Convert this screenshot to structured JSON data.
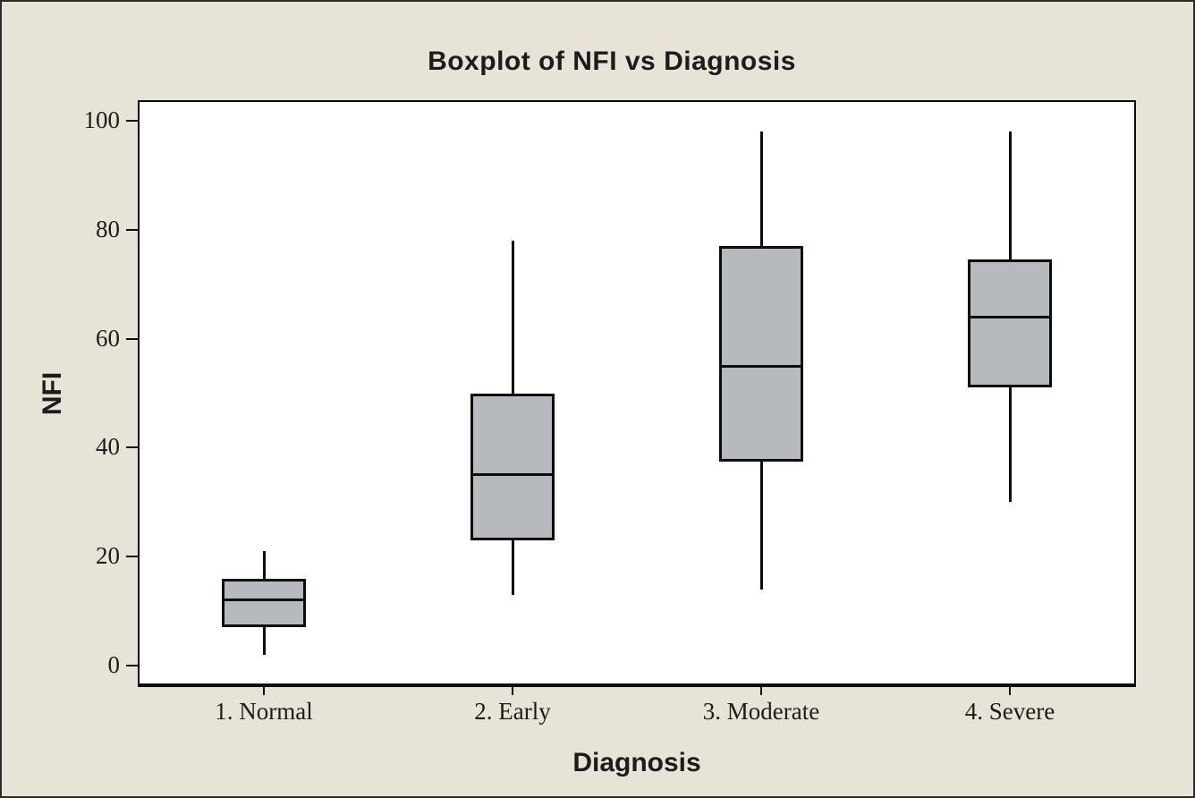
{
  "chart_data": {
    "type": "boxplot",
    "title": "Boxplot of NFI vs Diagnosis",
    "xlabel": "Diagnosis",
    "ylabel": "NFI",
    "categories": [
      "1. Normal",
      "2. Early",
      "3. Moderate",
      "4. Severe"
    ],
    "series": [
      {
        "category": "1. Normal",
        "whisker_low": 2,
        "q1": 7,
        "median": 12,
        "q3": 16,
        "whisker_high": 21
      },
      {
        "category": "2. Early",
        "whisker_low": 13,
        "q1": 23,
        "median": 35,
        "q3": 50,
        "whisker_high": 78
      },
      {
        "category": "3. Moderate",
        "whisker_low": 14,
        "q1": 37.5,
        "median": 55,
        "q3": 77,
        "whisker_high": 98
      },
      {
        "category": "4. Severe",
        "whisker_low": 30,
        "q1": 51,
        "median": 64,
        "q3": 74.5,
        "whisker_high": 98
      }
    ],
    "y_ticks": [
      0,
      20,
      40,
      60,
      80,
      100
    ],
    "ylim": [
      0,
      100
    ],
    "grid": false,
    "legend": false
  },
  "colors": {
    "figure_background": "#e7e3d7",
    "plot_background": "#ffffff",
    "box_fill": "#b6b9bd",
    "line": "#0d0d0d",
    "text": "#1c1c1c"
  }
}
